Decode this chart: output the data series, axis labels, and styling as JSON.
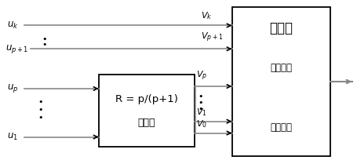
{
  "fig_width": 4.55,
  "fig_height": 2.09,
  "dpi": 100,
  "bg_color": "#ffffff",
  "line_color": "#000000",
  "gray_color": "#888888",
  "encoder_text1": "R = p/(p+1)",
  "encoder_text2": "编码器",
  "mapper_text1": "映射器",
  "mapper_text2": "选择序列",
  "mapper_text3": "子集序列",
  "font_name": "SimSun"
}
